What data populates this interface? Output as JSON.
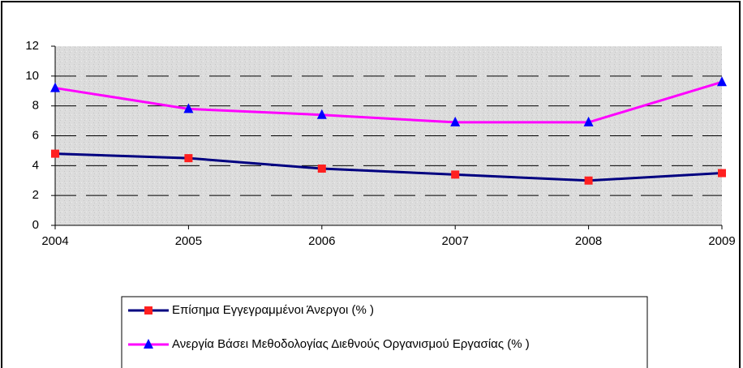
{
  "chart_data": {
    "type": "line",
    "categories": [
      "2004",
      "2005",
      "2006",
      "2007",
      "2008",
      "2009"
    ],
    "series": [
      {
        "name": "Επίσημα Εγγεγραμμένοι Άνεργοι (% )",
        "color": "#000080",
        "marker": "square",
        "marker_color": "#ff2020",
        "values": [
          4.8,
          4.5,
          3.8,
          3.4,
          3.0,
          3.5
        ]
      },
      {
        "name": "Ανεργία Βάσει Μεθοδολογίας Διεθνούς Οργανισμού Εργασίας (% )",
        "color": "#ff00ff",
        "marker": "triangle",
        "marker_color": "#0000ff",
        "values": [
          9.2,
          7.8,
          7.4,
          6.9,
          6.9,
          9.6
        ]
      }
    ],
    "ylim": [
      0,
      12
    ],
    "yticks": [
      0,
      2,
      4,
      6,
      8,
      10,
      12
    ],
    "grid": true
  }
}
